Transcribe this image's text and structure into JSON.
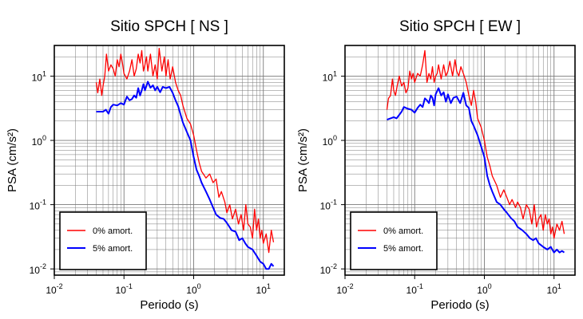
{
  "chart_data": [
    {
      "type": "line",
      "title": "Sitio SPCH [ NS ]",
      "xlabel": "Periodo (s)",
      "ylabel": "PSA (cm/s²)",
      "xscale": "log",
      "yscale": "log",
      "xlim": [
        0.01,
        20
      ],
      "ylim": [
        0.008,
        30
      ],
      "grid": true,
      "legend_position": "bottom-left",
      "xticks": [
        {
          "value": 0.01,
          "base": "10",
          "exp": "-2"
        },
        {
          "value": 0.1,
          "base": "10",
          "exp": "-1"
        },
        {
          "value": 1,
          "base": "10",
          "exp": "0"
        },
        {
          "value": 10,
          "base": "10",
          "exp": "1"
        }
      ],
      "yticks": [
        {
          "value": 0.01,
          "base": "10",
          "exp": "-2"
        },
        {
          "value": 0.1,
          "base": "10",
          "exp": "-1"
        },
        {
          "value": 1,
          "base": "10",
          "exp": "0"
        },
        {
          "value": 10,
          "base": "10",
          "exp": "1"
        }
      ],
      "series": [
        {
          "name": "0% amort.",
          "color": "#ff0000",
          "x": [
            0.04,
            0.042,
            0.045,
            0.048,
            0.05,
            0.053,
            0.056,
            0.06,
            0.065,
            0.07,
            0.075,
            0.08,
            0.085,
            0.09,
            0.095,
            0.1,
            0.11,
            0.12,
            0.13,
            0.14,
            0.15,
            0.16,
            0.17,
            0.18,
            0.19,
            0.2,
            0.21,
            0.22,
            0.24,
            0.26,
            0.28,
            0.3,
            0.32,
            0.35,
            0.38,
            0.4,
            0.43,
            0.46,
            0.5,
            0.55,
            0.6,
            0.65,
            0.7,
            0.8,
            0.9,
            1.0,
            1.1,
            1.2,
            1.3,
            1.5,
            1.7,
            1.9,
            2.1,
            2.3,
            2.5,
            2.8,
            3.0,
            3.3,
            3.6,
            4.0,
            4.4,
            4.8,
            5.2,
            5.6,
            6.0,
            6.5,
            7.0,
            7.5,
            8.0,
            8.5,
            9.0,
            9.5,
            10,
            11,
            12,
            13,
            14
          ],
          "y": [
            8,
            5.5,
            9,
            5,
            7,
            10,
            22,
            12,
            15,
            13,
            10,
            18,
            14,
            22,
            16,
            11,
            9,
            12,
            18,
            10,
            13,
            22,
            16,
            25,
            12,
            15,
            20,
            12,
            22,
            10,
            15,
            9,
            27,
            12,
            20,
            10,
            18,
            9,
            14,
            8,
            6,
            5,
            3.5,
            2.2,
            1.8,
            1.2,
            0.7,
            0.45,
            0.33,
            0.26,
            0.3,
            0.22,
            0.25,
            0.13,
            0.16,
            0.11,
            0.075,
            0.1,
            0.06,
            0.085,
            0.05,
            0.07,
            0.04,
            0.1,
            0.05,
            0.045,
            0.03,
            0.085,
            0.04,
            0.06,
            0.03,
            0.04,
            0.025,
            0.035,
            0.018,
            0.04,
            0.026
          ]
        },
        {
          "name": "5% amort.",
          "color": "#0000ff",
          "x": [
            0.04,
            0.045,
            0.05,
            0.055,
            0.06,
            0.065,
            0.07,
            0.08,
            0.09,
            0.1,
            0.11,
            0.12,
            0.13,
            0.14,
            0.15,
            0.16,
            0.17,
            0.18,
            0.19,
            0.2,
            0.22,
            0.24,
            0.26,
            0.28,
            0.3,
            0.33,
            0.36,
            0.4,
            0.45,
            0.5,
            0.55,
            0.6,
            0.65,
            0.7,
            0.8,
            0.9,
            1.0,
            1.1,
            1.2,
            1.3,
            1.5,
            1.7,
            1.9,
            2.1,
            2.4,
            2.7,
            3.0,
            3.5,
            4.0,
            4.5,
            5.0,
            5.5,
            6.0,
            7.0,
            8.0,
            9.0,
            10,
            11,
            12,
            13,
            14
          ],
          "y": [
            2.8,
            2.8,
            2.8,
            3.0,
            2.6,
            3.3,
            3.6,
            3.5,
            3.8,
            3.6,
            4.8,
            4.2,
            4.4,
            5.0,
            4.6,
            6.5,
            5.0,
            6.0,
            7.5,
            6.0,
            8.2,
            6.6,
            7.2,
            6.0,
            6.8,
            5.6,
            6.8,
            6.5,
            6.8,
            5.5,
            4.2,
            3.4,
            2.5,
            1.9,
            1.35,
            1.0,
            0.55,
            0.35,
            0.28,
            0.22,
            0.16,
            0.12,
            0.09,
            0.07,
            0.062,
            0.06,
            0.052,
            0.04,
            0.038,
            0.028,
            0.03,
            0.025,
            0.022,
            0.02,
            0.016,
            0.013,
            0.012,
            0.01,
            0.01,
            0.012,
            0.011
          ]
        }
      ]
    },
    {
      "type": "line",
      "title": "Sitio SPCH [ EW ]",
      "xlabel": "Periodo (s)",
      "ylabel": "PSA (cm/s²)",
      "xscale": "log",
      "yscale": "log",
      "xlim": [
        0.01,
        20
      ],
      "ylim": [
        0.008,
        30
      ],
      "grid": true,
      "legend_position": "bottom-left",
      "xticks": [
        {
          "value": 0.01,
          "base": "10",
          "exp": "-2"
        },
        {
          "value": 0.1,
          "base": "10",
          "exp": "-1"
        },
        {
          "value": 1,
          "base": "10",
          "exp": "0"
        },
        {
          "value": 10,
          "base": "10",
          "exp": "1"
        }
      ],
      "yticks": [
        {
          "value": 0.01,
          "base": "10",
          "exp": "-2"
        },
        {
          "value": 0.1,
          "base": "10",
          "exp": "-1"
        },
        {
          "value": 1,
          "base": "10",
          "exp": "0"
        },
        {
          "value": 10,
          "base": "10",
          "exp": "1"
        }
      ],
      "series": [
        {
          "name": "0% amort.",
          "color": "#ff0000",
          "x": [
            0.04,
            0.042,
            0.045,
            0.048,
            0.05,
            0.053,
            0.056,
            0.06,
            0.065,
            0.07,
            0.075,
            0.08,
            0.085,
            0.09,
            0.095,
            0.1,
            0.11,
            0.12,
            0.13,
            0.14,
            0.15,
            0.16,
            0.17,
            0.18,
            0.19,
            0.2,
            0.21,
            0.22,
            0.24,
            0.26,
            0.28,
            0.3,
            0.32,
            0.35,
            0.38,
            0.4,
            0.43,
            0.46,
            0.5,
            0.55,
            0.6,
            0.65,
            0.7,
            0.75,
            0.8,
            0.9,
            1.0,
            1.1,
            1.2,
            1.3,
            1.5,
            1.7,
            1.9,
            2.1,
            2.3,
            2.5,
            2.8,
            3.0,
            3.3,
            3.6,
            4.0,
            4.4,
            4.8,
            5.2,
            5.6,
            6.0,
            6.5,
            7.0,
            7.5,
            8.0,
            8.5,
            9.0,
            9.5,
            10,
            11,
            12,
            13,
            14
          ],
          "y": [
            3,
            4.5,
            5,
            9,
            6,
            5,
            7,
            10,
            7,
            8,
            5.5,
            6.5,
            12,
            9,
            11,
            8,
            11,
            10,
            15,
            25,
            8,
            11,
            9,
            14,
            8,
            10,
            11,
            15,
            9,
            15,
            10,
            12,
            17,
            10,
            18,
            12,
            10,
            14,
            11,
            8,
            5,
            3.5,
            6,
            4,
            2.2,
            1.6,
            1.0,
            0.55,
            0.4,
            0.28,
            0.2,
            0.13,
            0.17,
            0.13,
            0.1,
            0.12,
            0.09,
            0.11,
            0.09,
            0.06,
            0.1,
            0.085,
            0.05,
            0.1,
            0.045,
            0.06,
            0.07,
            0.04,
            0.07,
            0.05,
            0.06,
            0.035,
            0.045,
            0.03,
            0.05,
            0.04,
            0.055,
            0.035
          ]
        },
        {
          "name": "5% amort.",
          "color": "#0000ff",
          "x": [
            0.04,
            0.045,
            0.05,
            0.055,
            0.06,
            0.065,
            0.07,
            0.08,
            0.09,
            0.1,
            0.11,
            0.12,
            0.13,
            0.14,
            0.15,
            0.16,
            0.17,
            0.18,
            0.19,
            0.2,
            0.22,
            0.24,
            0.26,
            0.28,
            0.3,
            0.33,
            0.36,
            0.4,
            0.45,
            0.5,
            0.55,
            0.6,
            0.65,
            0.7,
            0.8,
            0.9,
            1.0,
            1.1,
            1.2,
            1.3,
            1.5,
            1.7,
            1.9,
            2.1,
            2.4,
            2.7,
            3.0,
            3.5,
            4.0,
            4.5,
            5.0,
            5.5,
            6.0,
            7.0,
            8.0,
            9.0,
            10,
            11,
            12,
            13,
            14
          ],
          "y": [
            2.1,
            2.2,
            2.3,
            2.2,
            2.5,
            2.8,
            3.3,
            3.1,
            3.0,
            2.7,
            3.2,
            3.6,
            3.3,
            4.5,
            4.2,
            3.8,
            5.0,
            4.6,
            3.5,
            5.2,
            6.5,
            5.0,
            5.6,
            4.0,
            5.2,
            3.8,
            4.6,
            4.8,
            3.8,
            5.5,
            3.5,
            3.2,
            2.0,
            1.7,
            1.2,
            0.8,
            0.55,
            0.28,
            0.2,
            0.16,
            0.11,
            0.1,
            0.085,
            0.075,
            0.062,
            0.055,
            0.045,
            0.04,
            0.035,
            0.03,
            0.028,
            0.03,
            0.025,
            0.022,
            0.02,
            0.022,
            0.018,
            0.02,
            0.018,
            0.019,
            0.018
          ]
        }
      ]
    }
  ]
}
